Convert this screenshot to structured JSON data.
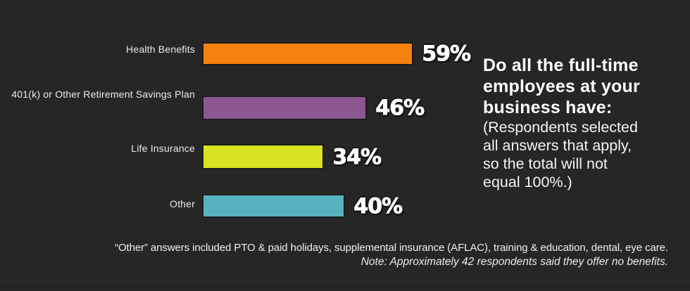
{
  "chart_data": {
    "type": "bar",
    "orientation": "horizontal",
    "title": "Do all the full-time employees at your business have:",
    "title_lines": [
      "Do all the full-time",
      "employees at your",
      "business have:"
    ],
    "subtitle": "(Respondents selected all answers that apply, so the total will not equal 100%.)",
    "subtitle_lines": [
      "(Respondents selected",
      "all answers that apply,",
      "so the total will not",
      "equal 100%.)"
    ],
    "categories": [
      "Health Benefits",
      "401(k) or Other Retirement Savings Plan",
      "Life Insurance",
      "Other"
    ],
    "values": [
      59,
      46,
      34,
      40
    ],
    "unit": "%",
    "xlim": [
      0,
      100
    ],
    "grid": false,
    "legend": false,
    "rows": [
      {
        "label": "Health Benefits",
        "value": 59,
        "value_label": "59%",
        "color": "#F5820C"
      },
      {
        "label": "401(k) or Other Retirement Savings Plan",
        "value": 46,
        "value_label": "46%",
        "color": "#8B5691"
      },
      {
        "label": "Life Insurance",
        "value": 34,
        "value_label": "34%",
        "color": "#D7E41F"
      },
      {
        "label": "Other",
        "value": 40,
        "value_label": "40%",
        "color": "#57B2C0"
      }
    ]
  },
  "colors": {
    "background": "#262626",
    "title_text": "#FFFFFF",
    "label_text": "#EDEBEB",
    "bar_border": "#1B1B1B",
    "bar_health": "#F5820C",
    "bar_retirement": "#8B5691",
    "bar_life": "#D7E41F",
    "bar_other": "#57B2C0"
  },
  "footer": {
    "other_note": "“Other” answers included PTO & paid holidays, supplemental insurance (AFLAC), training & education, dental, eye care.",
    "respondents_note": "Note: Approximately 42 respondents said they offer no benefits."
  }
}
